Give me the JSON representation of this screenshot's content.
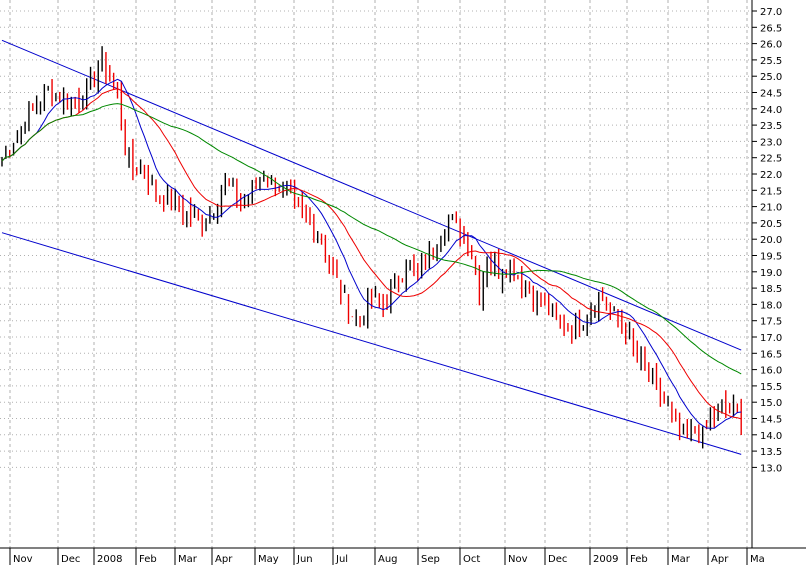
{
  "chart_data": {
    "type": "candlestick",
    "title": "",
    "xlabel": "",
    "ylabel": "",
    "ylim": [
      12.6,
      27.2
    ],
    "grid": true,
    "y_ticks": [
      "13.0",
      "13.5",
      "14.0",
      "14.5",
      "15.0",
      "15.5",
      "16.0",
      "16.5",
      "17.0",
      "17.5",
      "18.0",
      "18.5",
      "19.0",
      "19.5",
      "20.0",
      "20.5",
      "21.0",
      "21.5",
      "22.0",
      "22.5",
      "23.0",
      "23.5",
      "24.0",
      "24.5",
      "25.0",
      "25.5",
      "26.0",
      "26.5",
      "27.0"
    ],
    "x_ticks": [
      "Nov",
      "Dec",
      "2008",
      "Feb",
      "Mar",
      "Apr",
      "May",
      "Jun",
      "Jul",
      "Aug",
      "Sep",
      "Oct",
      "Nov",
      "Dec",
      "2009",
      "Feb",
      "Mar",
      "Apr",
      "Ma"
    ],
    "price_keypoints": [
      [
        0,
        22.4
      ],
      [
        4,
        23.2
      ],
      [
        8,
        24.0
      ],
      [
        12,
        24.6
      ],
      [
        16,
        24.3
      ],
      [
        20,
        24.2
      ],
      [
        22,
        24.6
      ],
      [
        26,
        25.4
      ],
      [
        28,
        25.0
      ],
      [
        30,
        24.5
      ],
      [
        32,
        22.8
      ],
      [
        34,
        22.0
      ],
      [
        36,
        22.3
      ],
      [
        40,
        21.4
      ],
      [
        44,
        21.2
      ],
      [
        48,
        20.8
      ],
      [
        52,
        20.4
      ],
      [
        55,
        21.0
      ],
      [
        58,
        21.8
      ],
      [
        62,
        21.2
      ],
      [
        65,
        21.4
      ],
      [
        68,
        22.0
      ],
      [
        72,
        21.6
      ],
      [
        76,
        21.0
      ],
      [
        80,
        20.6
      ],
      [
        83,
        20.0
      ],
      [
        86,
        19.0
      ],
      [
        90,
        17.8
      ],
      [
        93,
        17.5
      ],
      [
        96,
        18.2
      ],
      [
        99,
        17.9
      ],
      [
        102,
        18.6
      ],
      [
        105,
        19.3
      ],
      [
        108,
        18.9
      ],
      [
        111,
        19.4
      ],
      [
        114,
        20.3
      ],
      [
        116,
        20.7
      ],
      [
        118,
        20.4
      ],
      [
        120,
        20.0
      ],
      [
        122,
        19.6
      ],
      [
        124,
        18.3
      ],
      [
        126,
        19.4
      ],
      [
        129,
        19.0
      ],
      [
        132,
        19.2
      ],
      [
        135,
        18.7
      ],
      [
        138,
        18.3
      ],
      [
        141,
        18.0
      ],
      [
        144,
        17.6
      ],
      [
        147,
        17.3
      ],
      [
        150,
        17.4
      ],
      [
        153,
        17.9
      ],
      [
        156,
        18.2
      ],
      [
        159,
        17.6
      ],
      [
        162,
        17.3
      ],
      [
        164,
        16.6
      ],
      [
        167,
        16.0
      ],
      [
        170,
        15.4
      ],
      [
        173,
        14.8
      ],
      [
        176,
        14.0
      ],
      [
        178,
        13.9
      ],
      [
        180,
        14.2
      ],
      [
        182,
        13.9
      ],
      [
        184,
        14.5
      ],
      [
        187,
        14.9
      ],
      [
        190,
        14.7
      ],
      [
        192,
        14.6
      ]
    ],
    "moving_averages": [
      {
        "name": "",
        "period": 10,
        "color": "#0000cc"
      },
      {
        "name": "",
        "period": 20,
        "color": "#ee0000"
      },
      {
        "name": "",
        "period": 45,
        "color": "#008800"
      }
    ],
    "trend_lines": [
      {
        "role": "upper",
        "from": {
          "bar": 0,
          "value": 26.1
        },
        "to": {
          "bar": 192,
          "value": 16.6
        },
        "color": "#0000cc"
      },
      {
        "role": "lower",
        "from": {
          "bar": 0,
          "value": 20.2
        },
        "to": {
          "bar": 192,
          "value": 13.4
        },
        "color": "#0000cc"
      }
    ],
    "colors": {
      "up": "#000000",
      "down": "#ee0000",
      "grid": "#b0b0b0"
    }
  }
}
